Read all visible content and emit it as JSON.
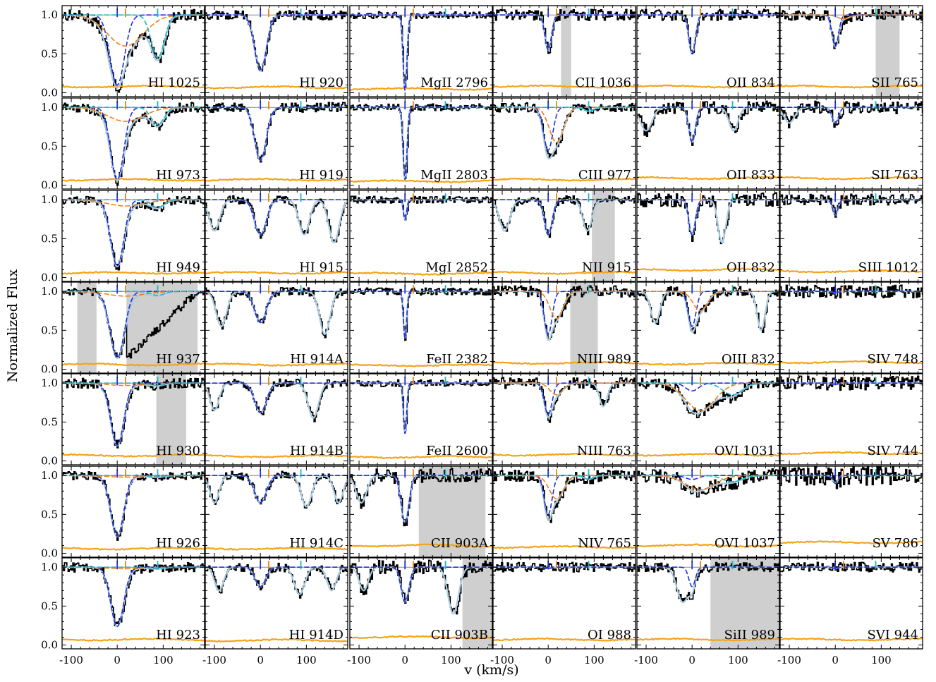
{
  "chart_data": {
    "type": "line",
    "xlabel": "v (km/s)",
    "ylabel": "Normalized Flux",
    "xlim": [
      -120,
      190
    ],
    "ylim": [
      -0.05,
      1.12
    ],
    "xticks": [
      -100,
      0,
      100
    ],
    "yticks": [
      0.0,
      0.5,
      1.0
    ],
    "ytick_labels": [
      "0.0",
      "0.5",
      "1.0"
    ],
    "component_velocities": [
      {
        "v": 0,
        "color": "#1f2fe0"
      },
      {
        "v": 18,
        "color": "#f07e1a"
      },
      {
        "v": 88,
        "color": "#1ab8c8"
      }
    ],
    "series_colors": {
      "flux": "#000000",
      "error": "#f5a31a",
      "total_fit": "#a9cbe0"
    },
    "grid_rows": 7,
    "grid_cols": 6,
    "panels": [
      {
        "label": "HI 1025",
        "col": 0,
        "row": 0,
        "comps": [
          {
            "v": 0,
            "depth": 0.9,
            "b": 22,
            "c": "b"
          },
          {
            "v": 18,
            "depth": 0.4,
            "b": 55,
            "c": "o"
          },
          {
            "v": 88,
            "depth": 0.55,
            "b": 20,
            "c": "c"
          }
        ],
        "shade": [],
        "err": 0.08
      },
      {
        "label": "HI 973",
        "col": 0,
        "row": 1,
        "comps": [
          {
            "v": 0,
            "depth": 0.93,
            "b": 20,
            "c": "b"
          },
          {
            "v": 18,
            "depth": 0.18,
            "b": 55,
            "c": "o"
          },
          {
            "v": 88,
            "depth": 0.22,
            "b": 20,
            "c": "c"
          }
        ],
        "shade": [],
        "err": 0.07
      },
      {
        "label": "HI 949",
        "col": 0,
        "row": 2,
        "comps": [
          {
            "v": 0,
            "depth": 0.85,
            "b": 20,
            "c": "b"
          },
          {
            "v": 18,
            "depth": 0.08,
            "b": 55,
            "c": "o"
          },
          {
            "v": 88,
            "depth": 0.1,
            "b": 20,
            "c": "c"
          }
        ],
        "shade": [],
        "err": 0.06
      },
      {
        "label": "HI 937",
        "col": 0,
        "row": 3,
        "comps": [
          {
            "v": 0,
            "depth": 0.85,
            "b": 22,
            "c": "b"
          },
          {
            "v": 18,
            "depth": 0.06,
            "b": 55,
            "c": "o"
          },
          {
            "v": 88,
            "depth": 0.05,
            "b": 20,
            "c": "c"
          }
        ],
        "shade": [
          [
            -87,
            -45
          ],
          [
            20,
            175
          ]
        ],
        "err": 0.06
      },
      {
        "label": "HI 930",
        "col": 0,
        "row": 4,
        "comps": [
          {
            "v": 0,
            "depth": 0.8,
            "b": 20,
            "c": "b"
          },
          {
            "v": 18,
            "depth": 0.03,
            "b": 55,
            "c": "o"
          },
          {
            "v": 88,
            "depth": 0.03,
            "b": 20,
            "c": "c"
          }
        ],
        "shade": [
          [
            85,
            150
          ]
        ],
        "err": 0.07
      },
      {
        "label": "HI 926",
        "col": 0,
        "row": 5,
        "comps": [
          {
            "v": 0,
            "depth": 0.78,
            "b": 20,
            "c": "b"
          },
          {
            "v": 18,
            "depth": 0.02,
            "b": 55,
            "c": "o"
          },
          {
            "v": 88,
            "depth": 0.02,
            "b": 20,
            "c": "c"
          }
        ],
        "shade": [],
        "err": 0.06
      },
      {
        "label": "HI 923",
        "col": 0,
        "row": 6,
        "comps": [
          {
            "v": 0,
            "depth": 0.76,
            "b": 20,
            "c": "b"
          },
          {
            "v": 18,
            "depth": 0.02,
            "b": 55,
            "c": "o"
          },
          {
            "v": 88,
            "depth": 0.02,
            "b": 20,
            "c": "c"
          }
        ],
        "shade": [],
        "err": 0.07
      },
      {
        "label": "HI 920",
        "col": 1,
        "row": 0,
        "comps": [
          {
            "v": 0,
            "depth": 0.72,
            "b": 18,
            "c": "b"
          }
        ],
        "shade": [],
        "err": 0.07
      },
      {
        "label": "HI 919",
        "col": 1,
        "row": 1,
        "comps": [
          {
            "v": 0,
            "depth": 0.68,
            "b": 18,
            "c": "b"
          }
        ],
        "shade": [],
        "err": 0.07
      },
      {
        "label": "HI 915",
        "col": 1,
        "row": 2,
        "comps": [
          {
            "v": -100,
            "depth": 0.4,
            "b": 16,
            "c": "x"
          },
          {
            "v": 0,
            "depth": 0.45,
            "b": 18,
            "c": "b"
          },
          {
            "v": 95,
            "depth": 0.45,
            "b": 16,
            "c": "x"
          },
          {
            "v": 160,
            "depth": 0.55,
            "b": 16,
            "c": "x"
          }
        ],
        "shade": [],
        "err": 0.06
      },
      {
        "label": "HI 914A",
        "col": 1,
        "row": 3,
        "comps": [
          {
            "v": -85,
            "depth": 0.45,
            "b": 16,
            "c": "x"
          },
          {
            "v": 0,
            "depth": 0.4,
            "b": 18,
            "c": "b"
          },
          {
            "v": 140,
            "depth": 0.55,
            "b": 16,
            "c": "x"
          }
        ],
        "shade": [],
        "err": 0.06
      },
      {
        "label": "HI 914B",
        "col": 1,
        "row": 4,
        "comps": [
          {
            "v": -100,
            "depth": 0.35,
            "b": 14,
            "c": "x"
          },
          {
            "v": 0,
            "depth": 0.38,
            "b": 18,
            "c": "b"
          },
          {
            "v": 115,
            "depth": 0.45,
            "b": 16,
            "c": "x"
          }
        ],
        "shade": [],
        "err": 0.06
      },
      {
        "label": "HI 914C",
        "col": 1,
        "row": 5,
        "comps": [
          {
            "v": -100,
            "depth": 0.35,
            "b": 14,
            "c": "x"
          },
          {
            "v": 0,
            "depth": 0.35,
            "b": 18,
            "c": "b"
          },
          {
            "v": 100,
            "depth": 0.4,
            "b": 16,
            "c": "x"
          },
          {
            "v": 170,
            "depth": 0.35,
            "b": 14,
            "c": "x"
          }
        ],
        "shade": [],
        "err": 0.06
      },
      {
        "label": "HI 914D",
        "col": 1,
        "row": 6,
        "comps": [
          {
            "v": -90,
            "depth": 0.3,
            "b": 14,
            "c": "x"
          },
          {
            "v": 0,
            "depth": 0.25,
            "b": 16,
            "c": "b"
          },
          {
            "v": 85,
            "depth": 0.35,
            "b": 16,
            "c": "x"
          },
          {
            "v": 155,
            "depth": 0.3,
            "b": 14,
            "c": "x"
          }
        ],
        "shade": [],
        "err": 0.06
      },
      {
        "label": "MgII 2796",
        "col": 2,
        "row": 0,
        "comps": [
          {
            "v": 0,
            "depth": 0.97,
            "b": 6,
            "c": "b"
          }
        ],
        "shade": [],
        "err": 0.05
      },
      {
        "label": "MgII 2803",
        "col": 2,
        "row": 1,
        "comps": [
          {
            "v": 0,
            "depth": 0.93,
            "b": 6,
            "c": "b"
          }
        ],
        "shade": [],
        "err": 0.05
      },
      {
        "label": "MgI 2852",
        "col": 2,
        "row": 2,
        "comps": [
          {
            "v": 0,
            "depth": 0.25,
            "b": 5,
            "c": "b"
          }
        ],
        "shade": [],
        "err": 0.05
      },
      {
        "label": "FeII 2382",
        "col": 2,
        "row": 3,
        "comps": [
          {
            "v": 0,
            "depth": 0.6,
            "b": 5,
            "c": "b"
          }
        ],
        "shade": [],
        "err": 0.05
      },
      {
        "label": "FeII 2600",
        "col": 2,
        "row": 4,
        "comps": [
          {
            "v": 0,
            "depth": 0.65,
            "b": 5,
            "c": "b"
          }
        ],
        "shade": [],
        "err": 0.05
      },
      {
        "label": "CII 903A",
        "col": 2,
        "row": 5,
        "comps": [
          {
            "v": -95,
            "depth": 0.35,
            "b": 16,
            "c": "x"
          },
          {
            "v": 0,
            "depth": 0.6,
            "b": 12,
            "c": "b"
          }
        ],
        "shade": [
          [
            30,
            175
          ]
        ],
        "err": 0.1
      },
      {
        "label": "CII 903B",
        "col": 2,
        "row": 6,
        "comps": [
          {
            "v": -90,
            "depth": 0.3,
            "b": 14,
            "c": "x"
          },
          {
            "v": 0,
            "depth": 0.45,
            "b": 12,
            "c": "b"
          },
          {
            "v": 105,
            "depth": 0.6,
            "b": 16,
            "c": "x"
          }
        ],
        "shade": [
          [
            125,
            190
          ]
        ],
        "err": 0.1
      },
      {
        "label": "CII 1036",
        "col": 3,
        "row": 0,
        "comps": [
          {
            "v": 0,
            "depth": 0.45,
            "b": 10,
            "c": "b"
          }
        ],
        "shade": [
          [
            28,
            50
          ]
        ],
        "err": 0.08
      },
      {
        "label": "CIII 977",
        "col": 3,
        "row": 1,
        "comps": [
          {
            "v": 0,
            "depth": 0.55,
            "b": 14,
            "c": "b"
          },
          {
            "v": 18,
            "depth": 0.45,
            "b": 22,
            "c": "o"
          },
          {
            "v": 88,
            "depth": 0.05,
            "b": 14,
            "c": "c"
          }
        ],
        "shade": [],
        "err": 0.07
      },
      {
        "label": "NII 915",
        "col": 3,
        "row": 2,
        "comps": [
          {
            "v": -95,
            "depth": 0.4,
            "b": 16,
            "c": "x"
          },
          {
            "v": 0,
            "depth": 0.45,
            "b": 12,
            "c": "b"
          },
          {
            "v": 85,
            "depth": 0.4,
            "b": 14,
            "c": "x"
          }
        ],
        "shade": [
          [
            95,
            145
          ]
        ],
        "err": 0.06
      },
      {
        "label": "NIII 989",
        "col": 3,
        "row": 3,
        "comps": [
          {
            "v": 0,
            "depth": 0.55,
            "b": 12,
            "c": "b"
          },
          {
            "v": 18,
            "depth": 0.35,
            "b": 20,
            "c": "o"
          }
        ],
        "shade": [
          [
            48,
            108
          ]
        ],
        "err": 0.08
      },
      {
        "label": "NIII 763",
        "col": 3,
        "row": 4,
        "comps": [
          {
            "v": 0,
            "depth": 0.4,
            "b": 12,
            "c": "b"
          },
          {
            "v": 18,
            "depth": 0.15,
            "b": 20,
            "c": "o"
          },
          {
            "v": 120,
            "depth": 0.3,
            "b": 12,
            "c": "x"
          }
        ],
        "shade": [],
        "err": 0.08
      },
      {
        "label": "NIV 765",
        "col": 3,
        "row": 5,
        "comps": [
          {
            "v": 0,
            "depth": 0.5,
            "b": 12,
            "c": "b"
          },
          {
            "v": 18,
            "depth": 0.3,
            "b": 22,
            "c": "o"
          },
          {
            "v": 88,
            "depth": 0.05,
            "b": 14,
            "c": "c"
          }
        ],
        "shade": [],
        "err": 0.08
      },
      {
        "label": "OI 988",
        "col": 3,
        "row": 6,
        "comps": [
          {
            "v": 0,
            "depth": 0.02,
            "b": 8,
            "c": "b"
          }
        ],
        "shade": [],
        "err": 0.07
      },
      {
        "label": "OII 834",
        "col": 4,
        "row": 0,
        "comps": [
          {
            "v": 0,
            "depth": 0.5,
            "b": 10,
            "c": "b"
          }
        ],
        "shade": [],
        "err": 0.08
      },
      {
        "label": "OII 833",
        "col": 4,
        "row": 1,
        "comps": [
          {
            "v": -100,
            "depth": 0.3,
            "b": 18,
            "c": "x"
          },
          {
            "v": 0,
            "depth": 0.45,
            "b": 10,
            "c": "b"
          },
          {
            "v": 90,
            "depth": 0.3,
            "b": 14,
            "c": "x"
          }
        ],
        "shade": [],
        "err": 0.09
      },
      {
        "label": "OII 832",
        "col": 4,
        "row": 2,
        "comps": [
          {
            "v": 0,
            "depth": 0.45,
            "b": 10,
            "c": "b"
          },
          {
            "v": 65,
            "depth": 0.55,
            "b": 12,
            "c": "x"
          }
        ],
        "shade": [],
        "err": 0.1
      },
      {
        "label": "OIII 832",
        "col": 4,
        "row": 3,
        "comps": [
          {
            "v": -80,
            "depth": 0.4,
            "b": 14,
            "c": "x"
          },
          {
            "v": 0,
            "depth": 0.45,
            "b": 12,
            "c": "b"
          },
          {
            "v": 18,
            "depth": 0.25,
            "b": 22,
            "c": "o"
          },
          {
            "v": 150,
            "depth": 0.5,
            "b": 12,
            "c": "x"
          }
        ],
        "shade": [],
        "err": 0.07
      },
      {
        "label": "OVI 1031",
        "col": 4,
        "row": 4,
        "comps": [
          {
            "v": 0,
            "depth": 0.1,
            "b": 20,
            "c": "b"
          },
          {
            "v": 18,
            "depth": 0.35,
            "b": 45,
            "c": "o"
          },
          {
            "v": 88,
            "depth": 0.15,
            "b": 30,
            "c": "c"
          }
        ],
        "shade": [],
        "err": 0.08
      },
      {
        "label": "OVI 1037",
        "col": 4,
        "row": 5,
        "comps": [
          {
            "v": 0,
            "depth": 0.05,
            "b": 20,
            "c": "b"
          },
          {
            "v": 18,
            "depth": 0.18,
            "b": 45,
            "c": "o"
          },
          {
            "v": 88,
            "depth": 0.08,
            "b": 30,
            "c": "c"
          }
        ],
        "shade": [],
        "err": 0.1
      },
      {
        "label": "SiII 989",
        "col": 4,
        "row": 6,
        "comps": [
          {
            "v": 0,
            "depth": 0.25,
            "b": 10,
            "c": "b"
          },
          {
            "v": -20,
            "depth": 0.45,
            "b": 18,
            "c": "x"
          }
        ],
        "shade": [
          [
            40,
            190
          ]
        ],
        "err": 0.07
      },
      {
        "label": "SII 765",
        "col": 5,
        "row": 0,
        "comps": [
          {
            "v": 0,
            "depth": 0.4,
            "b": 10,
            "c": "b"
          },
          {
            "v": 18,
            "depth": 0.05,
            "b": 18,
            "c": "o"
          }
        ],
        "shade": [
          [
            88,
            140
          ]
        ],
        "err": 0.08
      },
      {
        "label": "SII 763",
        "col": 5,
        "row": 1,
        "comps": [
          {
            "v": -100,
            "depth": 0.2,
            "b": 16,
            "c": "x"
          },
          {
            "v": 0,
            "depth": 0.2,
            "b": 10,
            "c": "b"
          }
        ],
        "shade": [],
        "err": 0.09
      },
      {
        "label": "SIII 1012",
        "col": 5,
        "row": 2,
        "comps": [
          {
            "v": 0,
            "depth": 0.2,
            "b": 8,
            "c": "b"
          }
        ],
        "shade": [],
        "err": 0.08
      },
      {
        "label": "SIV 748",
        "col": 5,
        "row": 3,
        "comps": [
          {
            "v": 0,
            "depth": 0.02,
            "b": 8,
            "c": "b"
          }
        ],
        "shade": [],
        "err": 0.09
      },
      {
        "label": "SIV 744",
        "col": 5,
        "row": 4,
        "comps": [
          {
            "v": 0,
            "depth": 0.02,
            "b": 8,
            "c": "b"
          }
        ],
        "shade": [],
        "err": 0.1
      },
      {
        "label": "SV 786",
        "col": 5,
        "row": 5,
        "comps": [
          {
            "v": 0,
            "depth": 0.1,
            "b": 8,
            "c": "b"
          }
        ],
        "shade": [],
        "err": 0.14
      },
      {
        "label": "SVI 944",
        "col": 5,
        "row": 6,
        "comps": [
          {
            "v": 0,
            "depth": 0.02,
            "b": 8,
            "c": "b"
          }
        ],
        "shade": [],
        "err": 0.07
      }
    ]
  }
}
